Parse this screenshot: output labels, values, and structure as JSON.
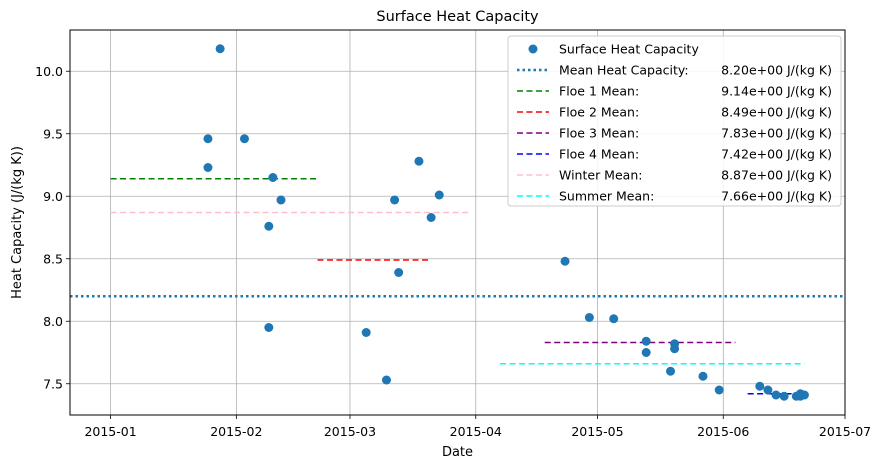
{
  "chart_data": {
    "type": "scatter",
    "title": "Surface Heat Capacity",
    "xlabel": "Date",
    "ylabel": "Heat Capacity (J/(kg K))",
    "grid": true,
    "legend_position": "top-right",
    "xlim": [
      "2014-12-22",
      "2015-07-01"
    ],
    "ylim": [
      7.25,
      10.33
    ],
    "x_ticks": [
      "2015-01",
      "2015-02",
      "2015-03",
      "2015-04",
      "2015-05",
      "2015-06",
      "2015-07"
    ],
    "y_ticks": [
      "7.5",
      "8.0",
      "8.5",
      "9.0",
      "9.5",
      "10.0"
    ],
    "series": [
      {
        "name": "Surface Heat Capacity",
        "color": "#1f77b4",
        "points": [
          {
            "x": "2015-01-25",
            "y": 9.46
          },
          {
            "x": "2015-01-25",
            "y": 9.23
          },
          {
            "x": "2015-01-28",
            "y": 10.18
          },
          {
            "x": "2015-02-03",
            "y": 9.46
          },
          {
            "x": "2015-02-09",
            "y": 8.76
          },
          {
            "x": "2015-02-09",
            "y": 7.95
          },
          {
            "x": "2015-02-10",
            "y": 9.15
          },
          {
            "x": "2015-02-12",
            "y": 8.97
          },
          {
            "x": "2015-03-05",
            "y": 7.91
          },
          {
            "x": "2015-03-10",
            "y": 7.53
          },
          {
            "x": "2015-03-12",
            "y": 8.97
          },
          {
            "x": "2015-03-13",
            "y": 8.39
          },
          {
            "x": "2015-03-18",
            "y": 9.28
          },
          {
            "x": "2015-03-21",
            "y": 8.83
          },
          {
            "x": "2015-03-23",
            "y": 9.01
          },
          {
            "x": "2015-04-23",
            "y": 8.48
          },
          {
            "x": "2015-04-29",
            "y": 8.03
          },
          {
            "x": "2015-05-05",
            "y": 8.02
          },
          {
            "x": "2015-05-13",
            "y": 7.84
          },
          {
            "x": "2015-05-13",
            "y": 7.75
          },
          {
            "x": "2015-05-19",
            "y": 7.6
          },
          {
            "x": "2015-05-20",
            "y": 7.82
          },
          {
            "x": "2015-05-20",
            "y": 7.78
          },
          {
            "x": "2015-05-27",
            "y": 7.56
          },
          {
            "x": "2015-05-31",
            "y": 7.45
          },
          {
            "x": "2015-06-10",
            "y": 7.48
          },
          {
            "x": "2015-06-12",
            "y": 7.45
          },
          {
            "x": "2015-06-14",
            "y": 7.41
          },
          {
            "x": "2015-06-16",
            "y": 7.4
          },
          {
            "x": "2015-06-19",
            "y": 7.4
          },
          {
            "x": "2015-06-20",
            "y": 7.4
          },
          {
            "x": "2015-06-20",
            "y": 7.42
          },
          {
            "x": "2015-06-21",
            "y": 7.41
          }
        ]
      }
    ],
    "reference_lines": [
      {
        "label": "Mean Heat Capacity:",
        "value_text": "8.20e+00 J/(kg K)",
        "y": 8.2,
        "x_start": "2014-12-22",
        "x_end": "2015-07-01",
        "color": "#1f77b4",
        "style": "dotted"
      },
      {
        "label": "Floe 1 Mean:",
        "value_text": "9.14e+00 J/(kg K)",
        "y": 9.14,
        "x_start": "2015-01-01",
        "x_end": "2015-02-21",
        "color": "#008000",
        "style": "dashed"
      },
      {
        "label": "Floe 2 Mean:",
        "value_text": "8.49e+00 J/(kg K)",
        "y": 8.49,
        "x_start": "2015-02-21",
        "x_end": "2015-03-21",
        "color": "#ff0000",
        "style": "dashed"
      },
      {
        "label": "Floe 3 Mean:",
        "value_text": "7.83e+00 J/(kg K)",
        "y": 7.83,
        "x_start": "2015-04-18",
        "x_end": "2015-06-04",
        "color": "#800080",
        "style": "dashed"
      },
      {
        "label": "Floe 4 Mean:",
        "value_text": "7.42e+00 J/(kg K)",
        "y": 7.42,
        "x_start": "2015-06-07",
        "x_end": "2015-06-22",
        "color": "#0000ff",
        "style": "dashed"
      },
      {
        "label": "Winter Mean:",
        "value_text": "8.87e+00 J/(kg K)",
        "y": 8.87,
        "x_start": "2015-01-01",
        "x_end": "2015-03-31",
        "color": "#ffc0cb",
        "style": "dashed"
      },
      {
        "label": "Summer Mean:",
        "value_text": "7.66e+00 J/(kg K)",
        "y": 7.66,
        "x_start": "2015-04-07",
        "x_end": "2015-06-21",
        "color": "#00ffff",
        "style": "dashed"
      }
    ]
  }
}
